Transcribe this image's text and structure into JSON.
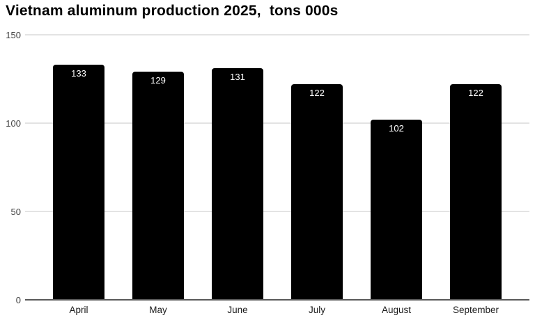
{
  "chart": {
    "title": "Vietnam aluminum production 2025,  tons 000s"
  },
  "chart_data": {
    "type": "bar",
    "title": "Vietnam aluminum production 2025,  tons 000s",
    "categories": [
      "April",
      "May",
      "June",
      "July",
      "August",
      "September"
    ],
    "values": [
      133,
      129,
      131,
      122,
      102,
      122
    ],
    "xlabel": "",
    "ylabel": "",
    "ylim": [
      0,
      150
    ],
    "yticks": [
      0,
      50,
      100,
      150
    ],
    "grid": true,
    "legend": false,
    "value_labels": "inside-top",
    "colors": {
      "bar": "#000000",
      "value_label": "#ffffff",
      "gridline": "#e3e3e3",
      "axis_line": "#595959",
      "tick_text": "#404040",
      "title_text": "#000000",
      "background": "#ffffff"
    }
  }
}
